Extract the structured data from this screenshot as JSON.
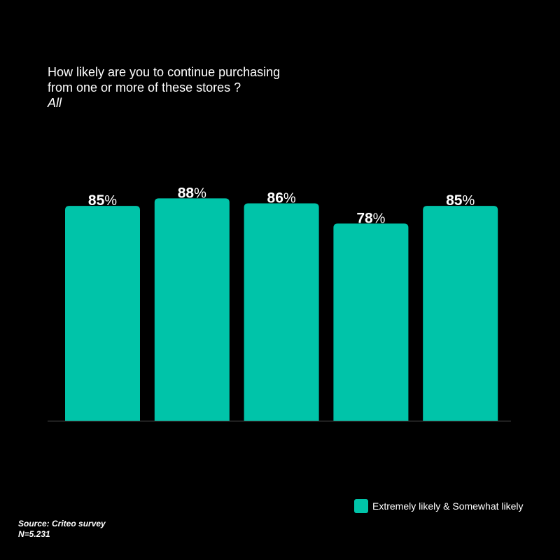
{
  "chart_data": {
    "type": "bar",
    "title_lines": [
      "How likely are you to continue purchasing",
      "from one or more of these stores ?"
    ],
    "subtitle": "All",
    "categories": [
      "",
      "",
      "",
      "",
      ""
    ],
    "series": [
      {
        "name": "Extremely likely & Somewhat likely",
        "values": [
          85,
          88,
          86,
          78,
          85
        ]
      }
    ],
    "value_suffix": "%",
    "ylim": [
      0,
      100
    ],
    "grid": false,
    "legend_position": "bottom-right",
    "bar_color": "#00c4a9",
    "baseline_color": "#555555"
  },
  "footer": {
    "source": "Source: Criteo survey",
    "sample": "N=5.231"
  }
}
